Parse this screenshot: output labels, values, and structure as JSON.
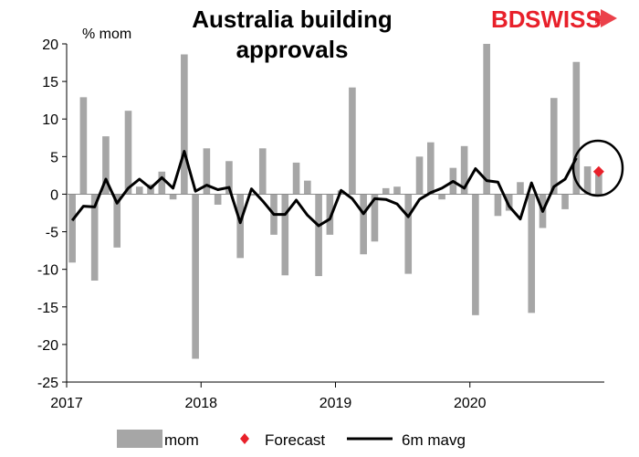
{
  "chart_data": {
    "type": "bar",
    "title_lines": [
      "Australia building",
      "approvals"
    ],
    "ylabel": "% mom",
    "ylim": [
      -25,
      20
    ],
    "y_ticks": [
      20,
      15,
      10,
      5,
      0,
      -5,
      -10,
      -15,
      -20,
      -25
    ],
    "x_ticks": [
      "2017",
      "2018",
      "2019",
      "2020"
    ],
    "x_tick_months": [
      0,
      12,
      24,
      36
    ],
    "months_total": 48,
    "legend_position": "bottom",
    "series": [
      {
        "name": "mom",
        "kind": "bar",
        "color": "#a6a6a6",
        "values": [
          -9.1,
          12.9,
          -11.5,
          7.7,
          -7.1,
          11.1,
          1.0,
          1.3,
          3.0,
          -0.7,
          18.6,
          -21.9,
          6.1,
          -1.4,
          4.4,
          -8.5,
          -0.2,
          6.1,
          -5.4,
          -10.8,
          4.2,
          1.8,
          -10.9,
          -5.4,
          0.5,
          14.2,
          -8.0,
          -6.3,
          0.8,
          1.0,
          -10.6,
          5.0,
          6.9,
          -0.7,
          3.5,
          6.4,
          -16.1,
          20.0,
          -2.9,
          -2.2,
          1.6,
          -15.8,
          -4.5,
          12.8,
          -2.0,
          17.6,
          3.7,
          2.9
        ]
      },
      {
        "name": "6m mavg",
        "kind": "line",
        "color": "#000000",
        "values": [
          -3.5,
          -1.6,
          -1.7,
          2.0,
          -1.2,
          0.8,
          2.0,
          0.8,
          2.2,
          0.8,
          5.7,
          0.4,
          1.2,
          0.6,
          0.9,
          -3.8,
          0.7,
          -0.9,
          -2.7,
          -2.7,
          -0.8,
          -2.8,
          -4.2,
          -3.3,
          0.5,
          -0.6,
          -2.6,
          -0.6,
          -0.7,
          -1.3,
          -3.0,
          -0.7,
          0.2,
          0.8,
          1.7,
          0.8,
          3.4,
          1.8,
          1.6,
          -1.6,
          -3.3,
          1.5,
          -2.3,
          1.0,
          2.0,
          4.8
        ]
      },
      {
        "name": "Forecast",
        "kind": "marker",
        "color": "#e8202a",
        "x_month": 47,
        "value": 3.0
      }
    ]
  },
  "logo": {
    "text_bd": "BD",
    "text_swiss": "SWISS",
    "color": "#e8202a"
  }
}
